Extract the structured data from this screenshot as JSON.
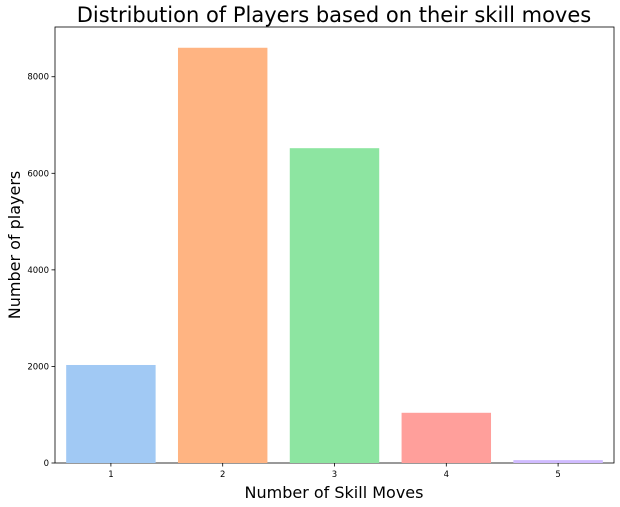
{
  "chart_data": {
    "type": "bar",
    "title": "Distribution of Players based on their skill moves",
    "xlabel": "Number of Skill Moves",
    "ylabel": "Number of players",
    "categories": [
      "1",
      "2",
      "3",
      "4",
      "5"
    ],
    "values": [
      2030,
      8600,
      6520,
      1040,
      60
    ],
    "colors": [
      "#a1c9f4",
      "#ffb482",
      "#8de5a1",
      "#ff9f9b",
      "#d0bbff"
    ],
    "ylim": [
      0,
      9030
    ],
    "yticks": [
      0,
      2000,
      4000,
      6000,
      8000
    ],
    "grid": false,
    "legend": "none"
  }
}
